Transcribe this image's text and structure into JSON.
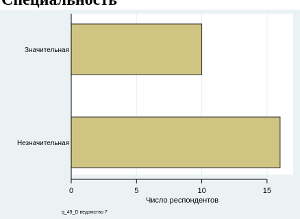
{
  "page": {
    "title": "Специальность"
  },
  "chart_data": {
    "type": "bar",
    "orientation": "horizontal",
    "categories": [
      "Значительная",
      "Незначительная"
    ],
    "values": [
      10,
      16
    ],
    "xlabel": "Число респондентов",
    "ylabel": "",
    "xlim": [
      0,
      17
    ],
    "xticks": [
      0,
      5,
      10,
      15
    ],
    "grid": true,
    "note": "q_49_D ведомство 7",
    "colors": {
      "background": "#eaf2f3",
      "plot_background": "#ffffff",
      "bar_fill": "#d0c483",
      "bar_stroke": "#2a2a2a",
      "grid": "#e6eef0"
    }
  }
}
